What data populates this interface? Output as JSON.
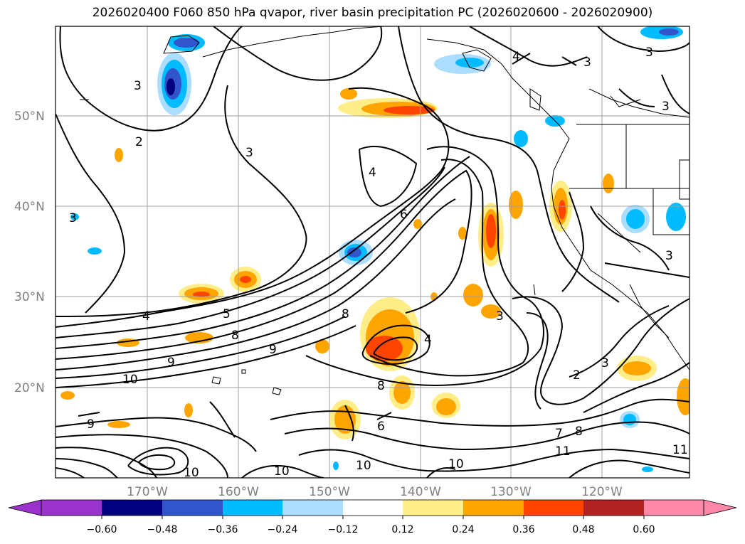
{
  "title": "2026020400 F060 850 hPa qvapor, river basin precipitation PC (2026020600 - 2026020900)",
  "lat_labels": [
    "50°N",
    "40°N",
    "30°N",
    "20°N"
  ],
  "lon_labels": [
    "170°W",
    "160°W",
    "150°W",
    "140°W",
    "130°W",
    "120°W"
  ],
  "contour_labels": [
    "2",
    "3",
    "3",
    "3",
    "3",
    "3",
    "3",
    "3",
    "4",
    "4",
    "4",
    "4",
    "5",
    "6",
    "6",
    "7",
    "8",
    "8",
    "8",
    "8",
    "9",
    "9",
    "9",
    "10",
    "10",
    "10",
    "10",
    "10",
    "11",
    "11",
    "2",
    "3",
    "3"
  ],
  "colorbar": {
    "colors": [
      "#9933cc",
      "#000080",
      "#3355cc",
      "#00bbff",
      "#aaddff",
      "#ffffff",
      "#ffee88",
      "#ffa500",
      "#ff4400",
      "#b22222",
      "#ff88aa"
    ],
    "ticks": [
      "−0.60",
      "−0.48",
      "−0.36",
      "−0.24",
      "−0.12",
      "0.12",
      "0.24",
      "0.36",
      "0.48",
      "0.60"
    ]
  }
}
